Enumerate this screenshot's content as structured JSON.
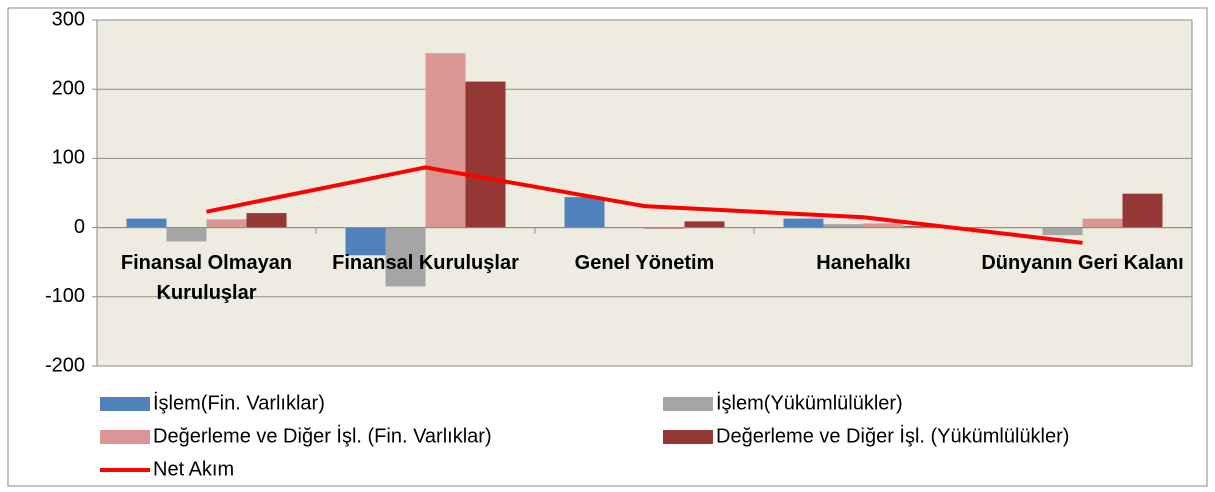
{
  "chart_data": {
    "type": "bar",
    "categories": [
      "Finansal Olmayan Kuruluşlar",
      "Finansal Kuruluşlar",
      "Genel Yönetim",
      "Hanehalkı",
      "Dünyanın Geri Kalanı"
    ],
    "series": [
      {
        "name": "İşlem(Fin. Varlıklar)",
        "color": "#4f81bd",
        "type": "bar",
        "values": [
          13,
          -40,
          44,
          13,
          0
        ]
      },
      {
        "name": "İşlem(Yükümlülükler)",
        "color": "#a5a5a5",
        "type": "bar",
        "values": [
          -20,
          -85,
          0,
          5,
          -11
        ]
      },
      {
        "name": "Değerleme ve Diğer İşl. (Fin. Varlıklar)",
        "color": "#d99694",
        "type": "bar",
        "values": [
          12,
          252,
          -2,
          6,
          13
        ]
      },
      {
        "name": "Değerleme ve Diğer İşl. (Yükümlülükler)",
        "color": "#953735",
        "type": "bar",
        "values": [
          21,
          211,
          9,
          2,
          49
        ]
      },
      {
        "name": "Net Akım",
        "color": "#ff0000",
        "type": "line",
        "values": [
          23,
          87,
          31,
          15,
          -22
        ]
      }
    ],
    "ylim": [
      -200,
      300
    ],
    "yticks": [
      -200,
      -100,
      0,
      100,
      200,
      300
    ],
    "grid": true
  }
}
